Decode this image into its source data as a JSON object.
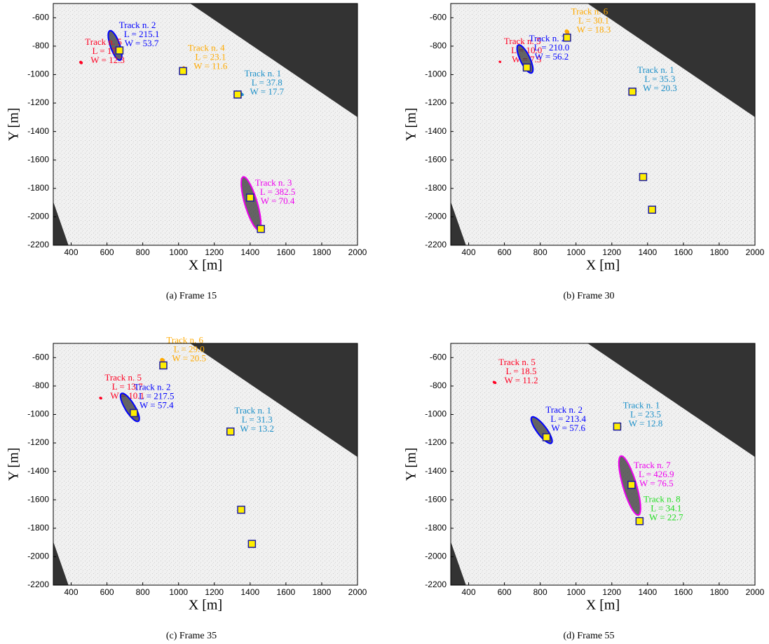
{
  "chart_data": [
    {
      "type": "scatter",
      "caption": "(a) Frame 15",
      "xlabel": "X [m]",
      "ylabel": "Y [m]",
      "xlim": [
        300,
        2000
      ],
      "ylim": [
        -2200,
        -500
      ],
      "xticks": [
        400,
        600,
        800,
        1000,
        1200,
        1400,
        1600,
        1800,
        2000
      ],
      "yticks": [
        -600,
        -800,
        -1000,
        -1200,
        -1400,
        -1600,
        -1800,
        -2000,
        -2200
      ],
      "marker_color": "#ffee00",
      "marker_edge": "#1a1aa0",
      "x": [
        670,
        1025,
        1330,
        1400,
        1460
      ],
      "y": [
        -830,
        -975,
        -1140,
        -1865,
        -2085
      ],
      "tracks": [
        {
          "name": "Track n. 2",
          "color": "#0000ff",
          "x": 645,
          "y": -795,
          "heading": -75,
          "values": [
            215.1,
            53.7
          ],
          "value_labels": [
            "L = 215.1",
            "W = 53.7"
          ]
        },
        {
          "name": "Track n. 5",
          "color": "#ff0022",
          "x": 455,
          "y": -915,
          "heading": -60,
          "values": [
            17.7,
            12.3
          ],
          "value_labels": [
            "L = 17.7",
            "W = 12.3"
          ]
        },
        {
          "name": "Track n. 4",
          "color": "#ffaa00",
          "x": 1030,
          "y": -955,
          "heading": -80,
          "values": [
            23.1,
            11.6
          ],
          "value_labels": [
            "L = 23.1",
            "W = 11.6"
          ]
        },
        {
          "name": "Track n. 1",
          "color": "#1a8fc8",
          "x": 1345,
          "y": -1135,
          "heading": -30,
          "values": [
            37.8,
            17.7
          ],
          "value_labels": [
            "L = 37.8",
            "W = 17.7"
          ]
        },
        {
          "name": "Track n. 3",
          "color": "#ee00ee",
          "x": 1405,
          "y": -1905,
          "heading": -77,
          "values": [
            382.5,
            70.4
          ],
          "value_labels": [
            "L = 382.5",
            "W = 70.4"
          ]
        }
      ]
    },
    {
      "type": "scatter",
      "caption": "(b) Frame 30",
      "xlabel": "X [m]",
      "ylabel": "Y [m]",
      "xlim": [
        300,
        2000
      ],
      "ylim": [
        -2200,
        -500
      ],
      "xticks": [
        400,
        600,
        800,
        1000,
        1200,
        1400,
        1600,
        1800,
        2000
      ],
      "yticks": [
        -600,
        -800,
        -1000,
        -1200,
        -1400,
        -1600,
        -1800,
        -2000,
        -2200
      ],
      "marker_color": "#ffee00",
      "marker_edge": "#1a1aa0",
      "x": [
        725,
        950,
        1315,
        1375,
        1425
      ],
      "y": [
        -950,
        -740,
        -1120,
        -1720,
        -1950
      ],
      "tracks": [
        {
          "name": "Track n. 6",
          "color": "#ffaa00",
          "x": 950,
          "y": -700,
          "heading": -70,
          "values": [
            30.1,
            18.3
          ],
          "value_labels": [
            "L = 30.1",
            "W = 18.3"
          ]
        },
        {
          "name": "Track n. 5",
          "color": "#ff0022",
          "x": 575,
          "y": -910,
          "heading": -40,
          "values": [
            10.0,
            7.5
          ],
          "value_labels": [
            "L = 10.0",
            "W = 7.5"
          ]
        },
        {
          "name": "Track n. 2",
          "color": "#0000ff",
          "x": 715,
          "y": -890,
          "heading": -70,
          "values": [
            210.0,
            56.2
          ],
          "value_labels": [
            "L = 210.0",
            "W = 56.2"
          ]
        },
        {
          "name": "Track n. 1",
          "color": "#1a8fc8",
          "x": 1320,
          "y": -1110,
          "heading": -30,
          "values": [
            35.3,
            20.3
          ],
          "value_labels": [
            "L = 35.3",
            "W = 20.3"
          ]
        }
      ]
    },
    {
      "type": "scatter",
      "caption": "(c) Frame 35",
      "xlabel": "X [m]",
      "ylabel": "Y [m]",
      "xlim": [
        300,
        2000
      ],
      "ylim": [
        -2200,
        -500
      ],
      "xticks": [
        400,
        600,
        800,
        1000,
        1200,
        1400,
        1600,
        1800,
        2000
      ],
      "yticks": [
        -600,
        -800,
        -1000,
        -1200,
        -1400,
        -1600,
        -1800,
        -2000,
        -2200
      ],
      "marker_color": "#ffee00",
      "marker_edge": "#1a1aa0",
      "x": [
        915,
        750,
        1290,
        1350,
        1410
      ],
      "y": [
        -655,
        -990,
        -1120,
        -1670,
        -1910
      ],
      "tracks": [
        {
          "name": "Track n. 6",
          "color": "#ffaa00",
          "x": 910,
          "y": -620,
          "heading": -70,
          "values": [
            29.0,
            20.5
          ],
          "value_labels": [
            "L = 29.0",
            "W = 20.5"
          ]
        },
        {
          "name": "Track n. 5",
          "color": "#ff0022",
          "x": 565,
          "y": -885,
          "heading": -40,
          "values": [
            13.7,
            10.1
          ],
          "value_labels": [
            "L = 13.7",
            "W = 10.1"
          ]
        },
        {
          "name": "Track n. 2",
          "color": "#0000ff",
          "x": 728,
          "y": -950,
          "heading": -65,
          "values": [
            217.5,
            57.4
          ],
          "value_labels": [
            "L = 217.5",
            "W = 57.4"
          ]
        },
        {
          "name": "Track n. 1",
          "color": "#1a8fc8",
          "x": 1290,
          "y": -1115,
          "heading": -30,
          "values": [
            31.3,
            13.2
          ],
          "value_labels": [
            "L = 31.3",
            "W = 13.2"
          ]
        }
      ]
    },
    {
      "type": "scatter",
      "caption": "(d) Frame 55",
      "xlabel": "X [m]",
      "ylabel": "Y [m]",
      "xlim": [
        300,
        2000
      ],
      "ylim": [
        -2200,
        -500
      ],
      "xticks": [
        400,
        600,
        800,
        1000,
        1200,
        1400,
        1600,
        1800,
        2000
      ],
      "yticks": [
        -600,
        -800,
        -1000,
        -1200,
        -1400,
        -1600,
        -1800,
        -2000,
        -2200
      ],
      "marker_color": "#ffee00",
      "marker_edge": "#1a1aa0",
      "x": [
        835,
        1230,
        1310,
        1355
      ],
      "y": [
        -1160,
        -1085,
        -1495,
        -1750
      ],
      "tracks": [
        {
          "name": "Track n. 5",
          "color": "#ff0022",
          "x": 545,
          "y": -775,
          "heading": -40,
          "values": [
            18.5,
            11.2
          ],
          "value_labels": [
            "L = 18.5",
            "W = 11.2"
          ]
        },
        {
          "name": "Track n. 2",
          "color": "#0000ff",
          "x": 808,
          "y": -1110,
          "heading": -60,
          "values": [
            213.4,
            57.6
          ],
          "value_labels": [
            "L = 213.4",
            "W = 57.6"
          ]
        },
        {
          "name": "Track n. 1",
          "color": "#1a8fc8",
          "x": 1240,
          "y": -1080,
          "heading": -30,
          "values": [
            23.5,
            12.8
          ],
          "value_labels": [
            "L = 23.5",
            "W = 12.8"
          ]
        },
        {
          "name": "Track n. 7",
          "color": "#ee00ee",
          "x": 1300,
          "y": -1500,
          "heading": -77,
          "values": [
            426.9,
            76.5
          ],
          "value_labels": [
            "L = 426.9",
            "W = 76.5"
          ]
        },
        {
          "name": "Track n. 8",
          "color": "#22dd22",
          "x": 1355,
          "y": -1740,
          "heading": -60,
          "values": [
            34.1,
            22.7
          ],
          "value_labels": [
            "L = 34.1",
            "W = 22.7"
          ]
        }
      ]
    }
  ]
}
